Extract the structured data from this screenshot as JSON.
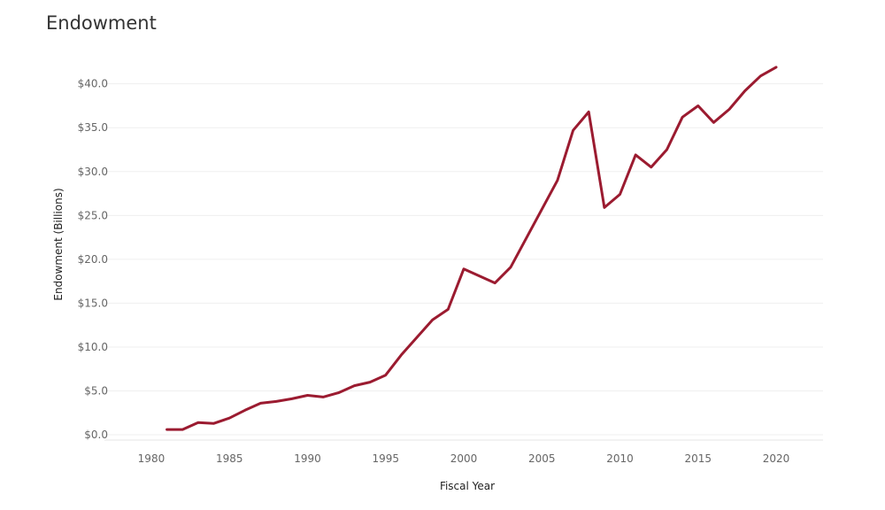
{
  "chart_data": {
    "type": "line",
    "title": "Endowment",
    "xlabel": "Fiscal Year",
    "ylabel": "Endowment (Billions)",
    "xlim": [
      1977,
      2023
    ],
    "ylim": [
      -0.6,
      43.5
    ],
    "x_ticks": [
      1980,
      1985,
      1990,
      1995,
      2000,
      2005,
      2010,
      2015,
      2020
    ],
    "y_ticks": [
      0,
      5,
      10,
      15,
      20,
      25,
      30,
      35,
      40
    ],
    "y_tick_labels": [
      "$0.0",
      "$5.0",
      "$10.0",
      "$15.0",
      "$20.0",
      "$25.0",
      "$30.0",
      "$35.0",
      "$40.0"
    ],
    "grid": true,
    "series": [
      {
        "color": "#9b1b30",
        "points": [
          [
            1981,
            0.6
          ],
          [
            1982,
            0.6
          ],
          [
            1983,
            1.4
          ],
          [
            1984,
            1.3
          ],
          [
            1985,
            1.9
          ],
          [
            1986,
            2.8
          ],
          [
            1987,
            3.6
          ],
          [
            1988,
            3.8
          ],
          [
            1989,
            4.1
          ],
          [
            1990,
            4.5
          ],
          [
            1991,
            4.3
          ],
          [
            1992,
            4.8
          ],
          [
            1993,
            5.6
          ],
          [
            1994,
            6.0
          ],
          [
            1995,
            6.8
          ],
          [
            1996,
            9.1
          ],
          [
            1997,
            11.1
          ],
          [
            1998,
            13.1
          ],
          [
            1999,
            14.3
          ],
          [
            2000,
            18.9
          ],
          [
            2002,
            17.3
          ],
          [
            2003,
            19.1
          ],
          [
            2006,
            29.0
          ],
          [
            2007,
            34.7
          ],
          [
            2008,
            36.8
          ],
          [
            2009,
            25.9
          ],
          [
            2010,
            27.4
          ],
          [
            2011,
            31.9
          ],
          [
            2012,
            30.5
          ],
          [
            2013,
            32.5
          ],
          [
            2014,
            36.2
          ],
          [
            2015,
            37.5
          ],
          [
            2016,
            35.6
          ],
          [
            2017,
            37.1
          ],
          [
            2018,
            39.2
          ],
          [
            2019,
            40.9
          ],
          [
            2020,
            41.9
          ]
        ]
      }
    ]
  }
}
